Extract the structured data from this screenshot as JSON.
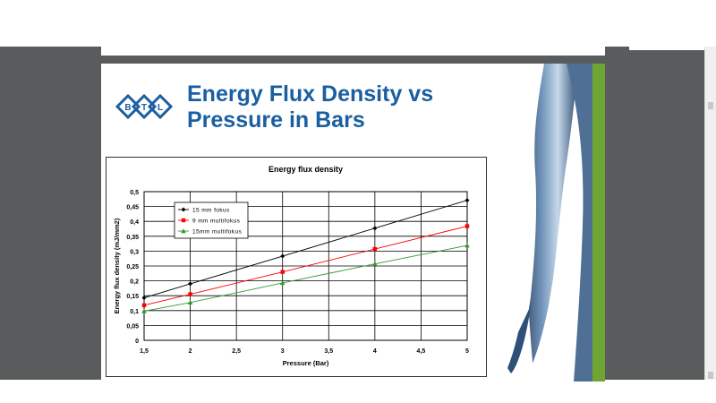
{
  "slide": {
    "title": "Energy Flux Density vs Pressure in Bars",
    "logo_text": [
      "B",
      "T",
      "L"
    ]
  },
  "colors": {
    "title": "#1a5fa0",
    "accent_green": "#6ea432",
    "background_gray": "#595b5c"
  },
  "chart_data": {
    "type": "line",
    "title": "Energy flux density",
    "xlabel": "Pressure (Bar)",
    "ylabel": "Energy flux density (mJ/mm2)",
    "x": [
      1.5,
      2,
      3,
      4,
      5
    ],
    "xticks": [
      "1,5",
      "2",
      "2,5",
      "3",
      "3,5",
      "4",
      "4,5",
      "5"
    ],
    "xtick_values": [
      1.5,
      2,
      2.5,
      3,
      3.5,
      4,
      4.5,
      5
    ],
    "yticks": [
      "0",
      "0,05",
      "0,1",
      "0,15",
      "0,2",
      "0,25",
      "0,3",
      "0,35",
      "0,4",
      "0,45",
      "0,5"
    ],
    "ytick_values": [
      0,
      0.05,
      0.1,
      0.15,
      0.2,
      0.25,
      0.3,
      0.35,
      0.4,
      0.45,
      0.5
    ],
    "xlim": [
      1.5,
      5
    ],
    "ylim": [
      0,
      0.5
    ],
    "grid": true,
    "legend_position": "top-left",
    "series": [
      {
        "name": "15 mm fokus",
        "values": [
          0.143,
          0.19,
          0.283,
          0.377,
          0.471
        ],
        "color": "#000000",
        "marker": "diamond"
      },
      {
        "name": "9 mm multifokus",
        "values": [
          0.118,
          0.155,
          0.23,
          0.307,
          0.384
        ],
        "color": "#ff0000",
        "marker": "square"
      },
      {
        "name": "15mm multifokus",
        "values": [
          0.098,
          0.127,
          0.193,
          0.257,
          0.319
        ],
        "color": "#339933",
        "marker": "triangle"
      }
    ]
  }
}
